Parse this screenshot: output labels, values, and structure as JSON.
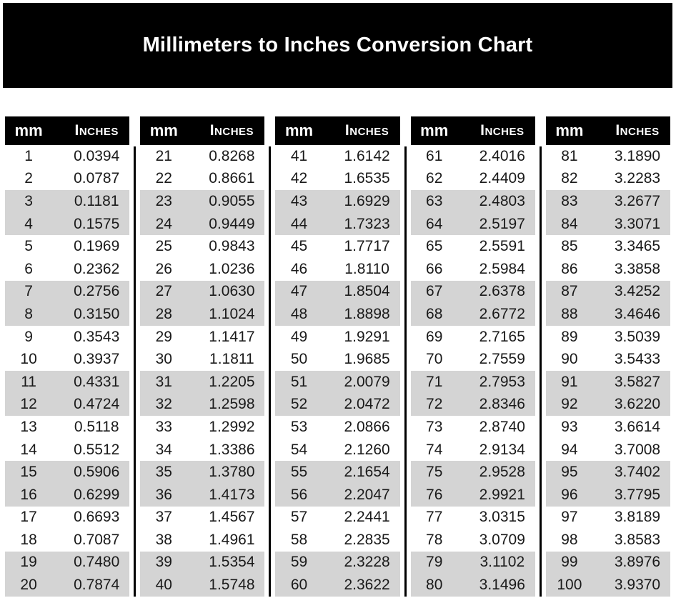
{
  "title": "Millimeters to Inches Conversion Chart",
  "colors": {
    "page_bg": "#ffffff",
    "banner_bg": "#000000",
    "banner_text": "#ffffff",
    "header_bg": "#000000",
    "header_text": "#ffffff",
    "row_bg": "#ffffff",
    "stripe_bg": "#d4d4d4",
    "body_text": "#1a1a1a",
    "divider": "#000000"
  },
  "chart_data": {
    "type": "table",
    "title": "Millimeters to Inches Conversion Chart",
    "column_headers": [
      "mm",
      "Inches"
    ],
    "stripe_pattern": "alternating pairs of rows shaded gray starting at rows 3-4",
    "groups": [
      {
        "mm": [
          1,
          2,
          3,
          4,
          5,
          6,
          7,
          8,
          9,
          10,
          11,
          12,
          13,
          14,
          15,
          16,
          17,
          18,
          19,
          20
        ],
        "inches": [
          "0.0394",
          "0.0787",
          "0.1181",
          "0.1575",
          "0.1969",
          "0.2362",
          "0.2756",
          "0.3150",
          "0.3543",
          "0.3937",
          "0.4331",
          "0.4724",
          "0.5118",
          "0.5512",
          "0.5906",
          "0.6299",
          "0.6693",
          "0.7087",
          "0.7480",
          "0.7874"
        ]
      },
      {
        "mm": [
          21,
          22,
          23,
          24,
          25,
          26,
          27,
          28,
          29,
          30,
          31,
          32,
          33,
          34,
          35,
          36,
          37,
          38,
          39,
          40
        ],
        "inches": [
          "0.8268",
          "0.8661",
          "0.9055",
          "0.9449",
          "0.9843",
          "1.0236",
          "1.0630",
          "1.1024",
          "1.1417",
          "1.1811",
          "1.2205",
          "1.2598",
          "1.2992",
          "1.3386",
          "1.3780",
          "1.4173",
          "1.4567",
          "1.4961",
          "1.5354",
          "1.5748"
        ]
      },
      {
        "mm": [
          41,
          42,
          43,
          44,
          45,
          46,
          47,
          48,
          49,
          50,
          51,
          52,
          53,
          54,
          55,
          56,
          57,
          58,
          59,
          60
        ],
        "inches": [
          "1.6142",
          "1.6535",
          "1.6929",
          "1.7323",
          "1.7717",
          "1.8110",
          "1.8504",
          "1.8898",
          "1.9291",
          "1.9685",
          "2.0079",
          "2.0472",
          "2.0866",
          "2.1260",
          "2.1654",
          "2.2047",
          "2.2441",
          "2.2835",
          "2.3228",
          "2.3622"
        ]
      },
      {
        "mm": [
          61,
          62,
          63,
          64,
          65,
          66,
          67,
          68,
          69,
          70,
          71,
          72,
          73,
          74,
          75,
          76,
          77,
          78,
          79,
          80
        ],
        "inches": [
          "2.4016",
          "2.4409",
          "2.4803",
          "2.5197",
          "2.5591",
          "2.5984",
          "2.6378",
          "2.6772",
          "2.7165",
          "2.7559",
          "2.7953",
          "2.8346",
          "2.8740",
          "2.9134",
          "2.9528",
          "2.9921",
          "3.0315",
          "3.0709",
          "3.1102",
          "3.1496"
        ]
      },
      {
        "mm": [
          81,
          82,
          83,
          84,
          85,
          86,
          87,
          88,
          89,
          90,
          91,
          92,
          93,
          94,
          95,
          96,
          97,
          98,
          99,
          100
        ],
        "inches": [
          "3.1890",
          "3.2283",
          "3.2677",
          "3.3071",
          "3.3465",
          "3.3858",
          "3.4252",
          "3.4646",
          "3.5039",
          "3.5433",
          "3.5827",
          "3.6220",
          "3.6614",
          "3.7008",
          "3.7402",
          "3.7795",
          "3.8189",
          "3.8583",
          "3.8976",
          "3.9370"
        ]
      }
    ]
  }
}
